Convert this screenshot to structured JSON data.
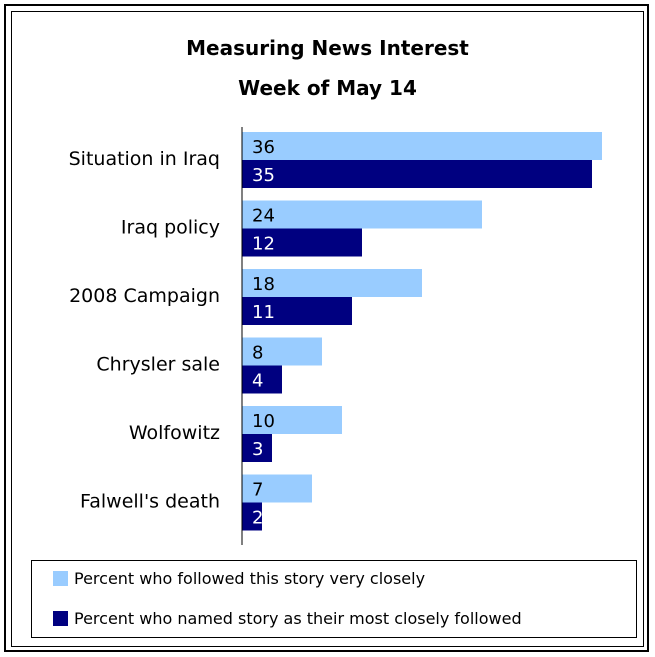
{
  "colors": {
    "closely": "#99ccff",
    "most": "#000080"
  },
  "chart_data": {
    "type": "bar",
    "orientation": "horizontal",
    "title": "Measuring News Interest",
    "subtitle": "Week of May 14",
    "categories": [
      "Situation in Iraq",
      "Iraq policy",
      "2008 Campaign",
      "Chrysler sale",
      "Wolfowitz",
      "Falwell's death"
    ],
    "series": [
      {
        "name": "Percent who followed this story very closely",
        "values": [
          36,
          24,
          18,
          8,
          10,
          7
        ]
      },
      {
        "name": "Percent who named story as their most closely followed",
        "values": [
          35,
          12,
          11,
          4,
          3,
          2
        ]
      }
    ],
    "xlim": [
      0,
      40
    ],
    "grid": false,
    "legend_position": "bottom"
  }
}
